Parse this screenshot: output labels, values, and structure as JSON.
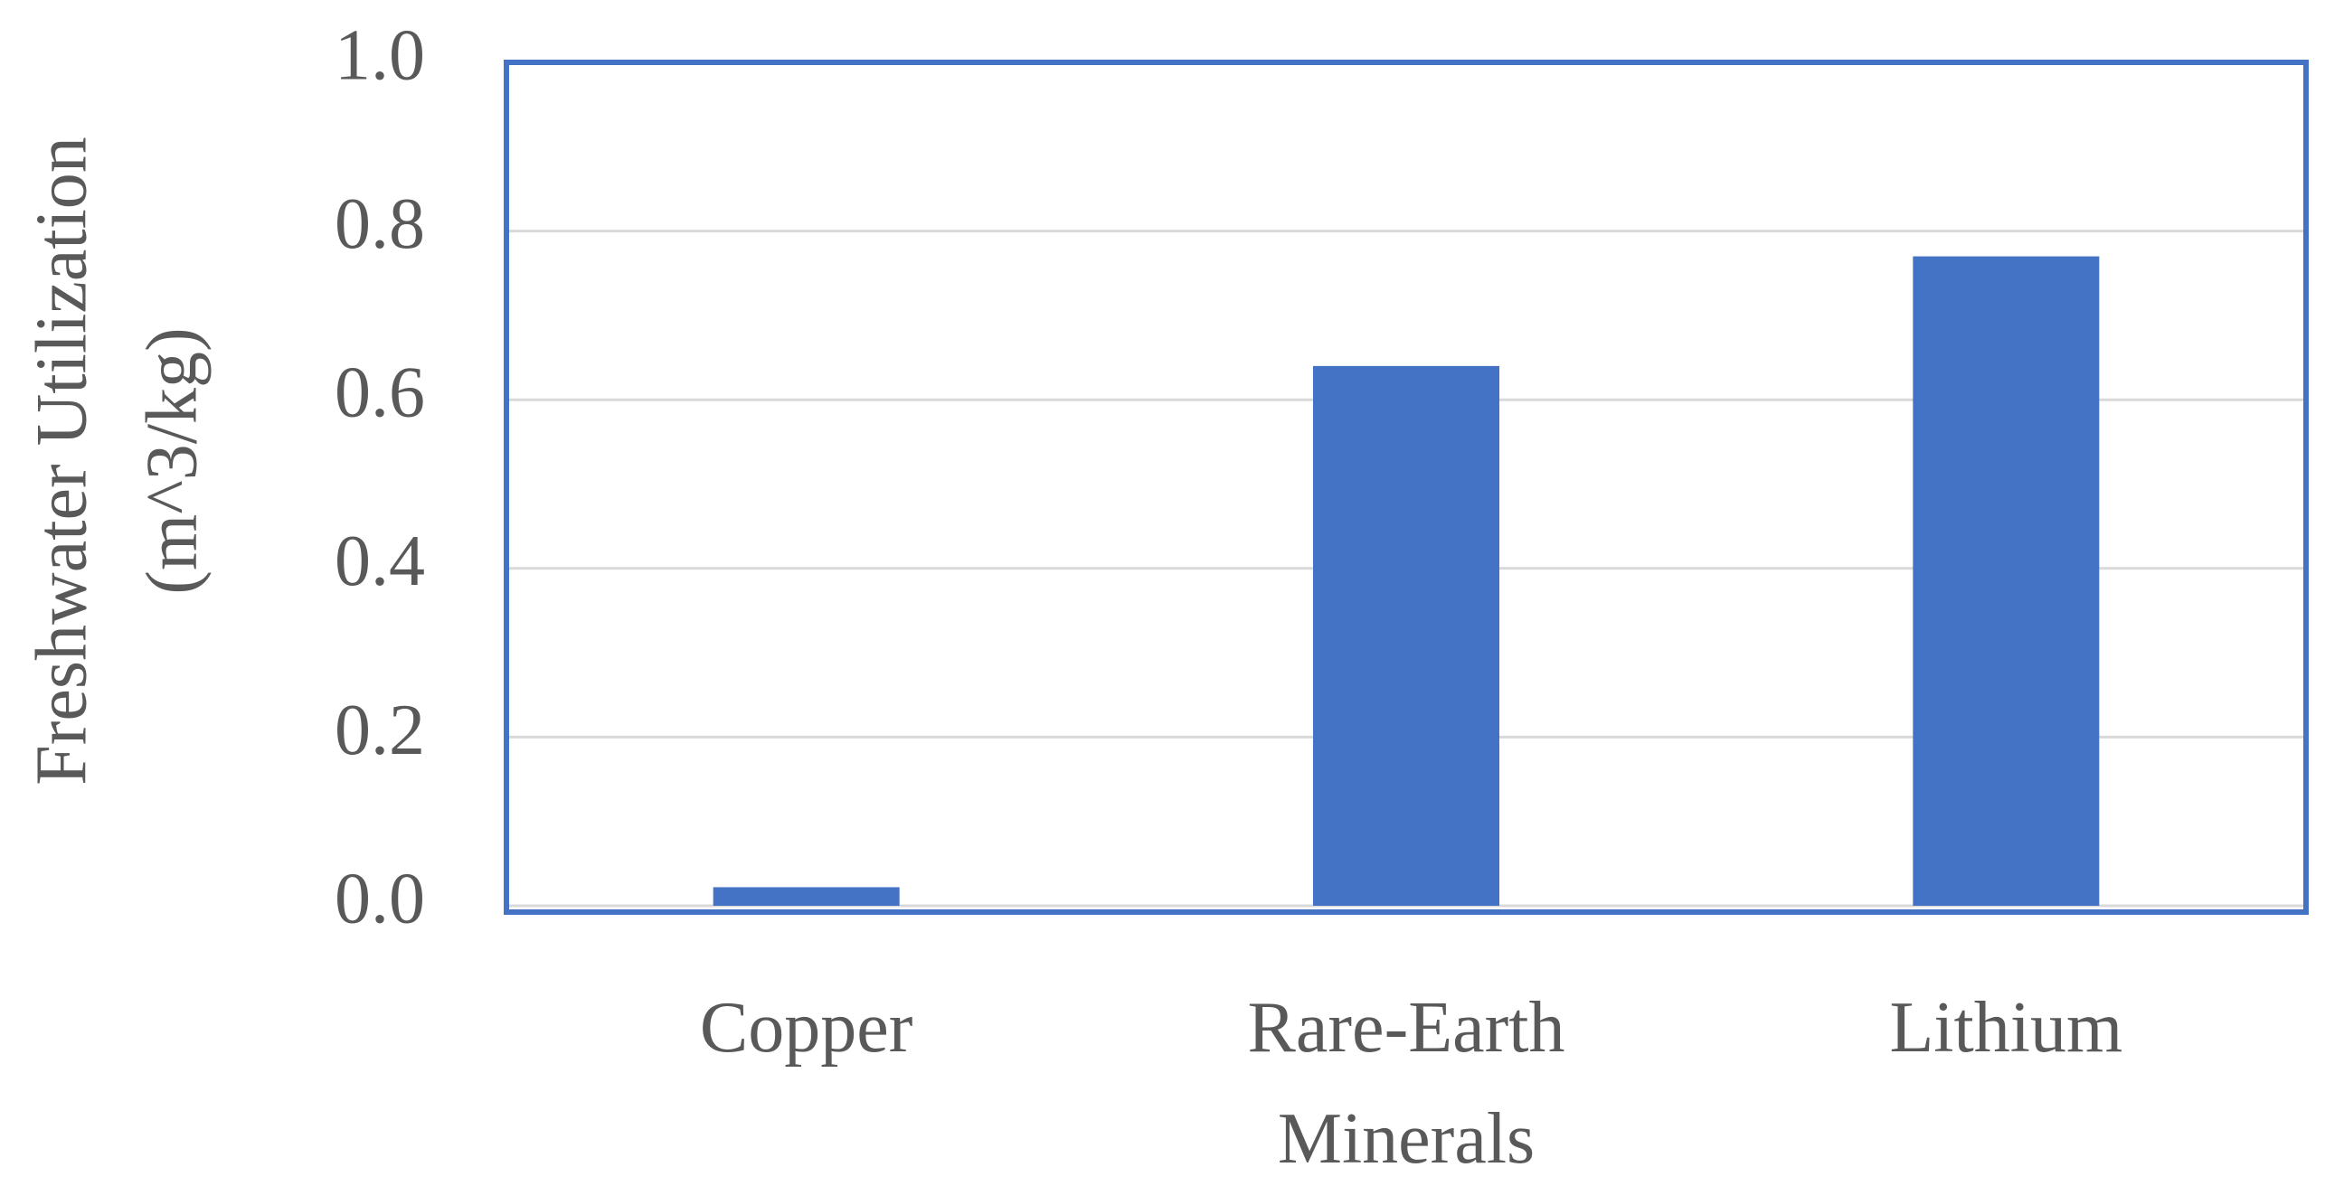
{
  "chart_data": {
    "type": "bar",
    "y_label": [
      "Freshwater Utilization",
      "(m^3/kg)"
    ],
    "categories": [
      "Copper",
      "Rare-Earth Minerals",
      "Lithium"
    ],
    "values": [
      0.022,
      0.64,
      0.77
    ],
    "color": "#4472c4",
    "ylim": [
      0,
      1.0
    ],
    "yticks": [
      {
        "value": 0,
        "label": "0.0"
      },
      0.2,
      0.4,
      0.6,
      0.8,
      {
        "value": 1.0,
        "label": "1.0"
      }
    ],
    "grid": true
  }
}
